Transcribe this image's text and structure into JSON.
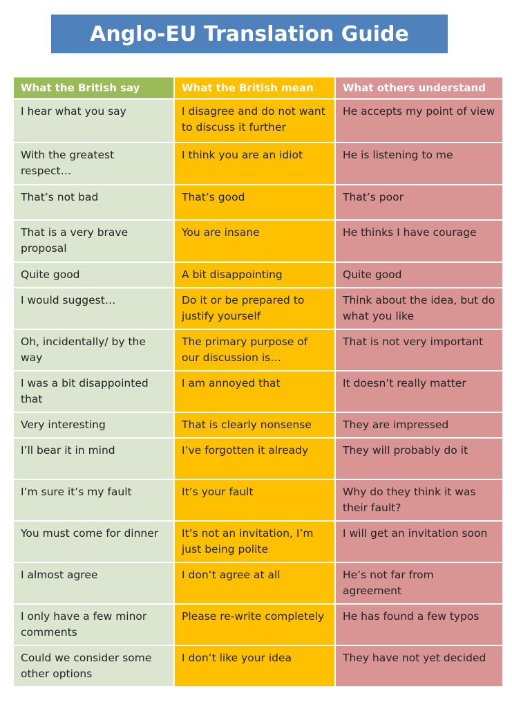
{
  "title": "Anglo-EU Translation Guide",
  "headers": [
    "What the British say",
    "What the British mean",
    "What others understand"
  ],
  "rows": [
    [
      "I hear what you say",
      "I disagree and do not want to discuss it further",
      "He accepts my point of view"
    ],
    [
      "With the greatest respect…",
      "I think you are an idiot",
      "He is listening to me"
    ],
    [
      "That’s not bad",
      "That’s good",
      "That’s poor"
    ],
    [
      "That is a very brave proposal",
      "You are insane",
      "He thinks I have courage"
    ],
    [
      "Quite good",
      "A bit disappointing",
      "Quite good"
    ],
    [
      "I would suggest…",
      "Do it or be prepared to justify yourself",
      "Think about the idea, but do what you like"
    ],
    [
      "Oh, incidentally/ by the way",
      "The primary purpose of our discussion is…",
      "That is not very important"
    ],
    [
      "I was a bit disappointed that",
      "I am annoyed that",
      "It doesn’t really matter"
    ],
    [
      "Very interesting",
      "That is clearly nonsense",
      "They are impressed"
    ],
    [
      "I’ll bear it in mind",
      "I’ve forgotten it already",
      "They will probably do it"
    ],
    [
      "I’m sure it’s my fault",
      "It’s your fault",
      "Why do they think it was their fault?"
    ],
    [
      "You must come for dinner",
      "It’s not an invitation, I’m just being polite",
      "I will get an invitation soon"
    ],
    [
      "I almost agree",
      "I don’t agree at all",
      "He’s not far from agreement"
    ],
    [
      "I only have a few minor comments",
      "Please re-write completely",
      "He has found a few typos"
    ],
    [
      "Could we consider some other options",
      "I don’t like your idea",
      "They have not yet decided"
    ]
  ]
}
